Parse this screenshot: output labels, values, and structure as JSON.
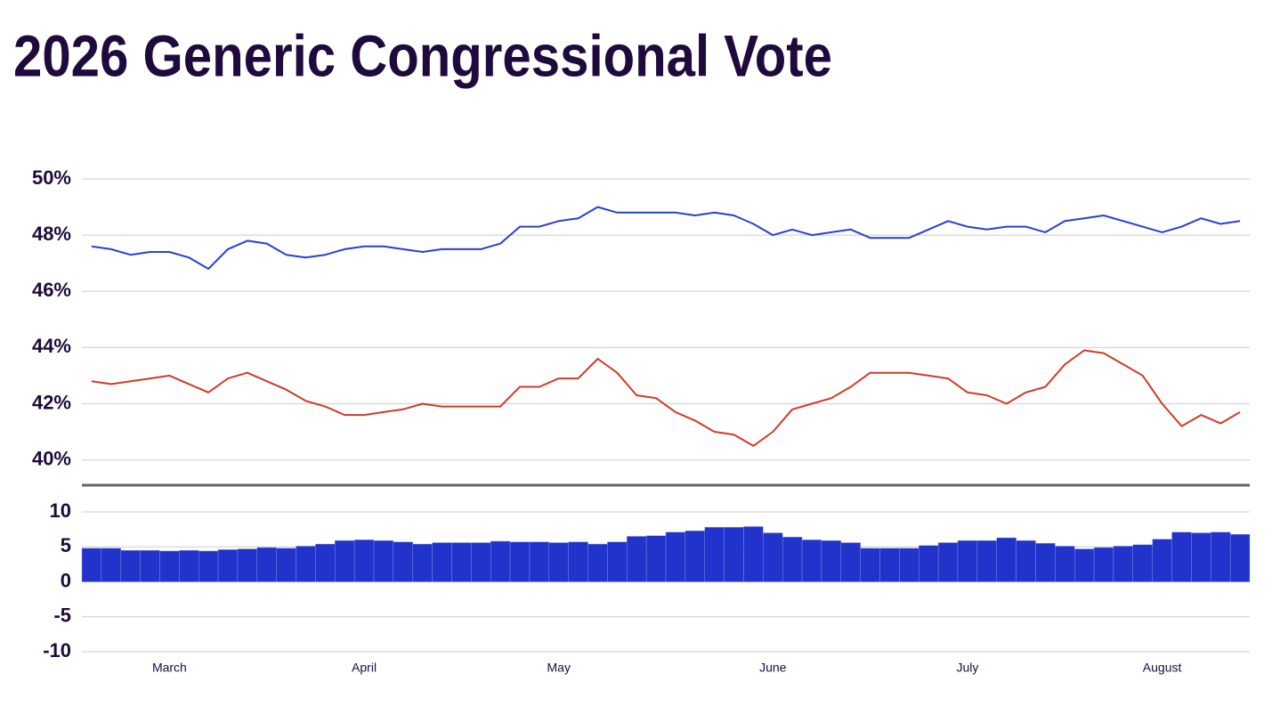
{
  "chart_data": [
    {
      "type": "line",
      "title": "2026 Generic Congressional Vote",
      "ylim": [
        39.1,
        50.3
      ],
      "yticks": [
        {
          "value": 40,
          "label": "40%"
        },
        {
          "value": 42,
          "label": "42%"
        },
        {
          "value": 44,
          "label": "44%"
        },
        {
          "value": 46,
          "label": "46%"
        },
        {
          "value": 48,
          "label": "48%"
        },
        {
          "value": 50,
          "label": "50%"
        }
      ],
      "grid": true,
      "series": [
        {
          "color": "#2a3fd0",
          "values": [
            47.6,
            47.5,
            47.3,
            47.4,
            47.4,
            47.2,
            46.8,
            47.5,
            47.8,
            47.7,
            47.3,
            47.2,
            47.3,
            47.5,
            47.6,
            47.6,
            47.5,
            47.4,
            47.5,
            47.5,
            47.5,
            47.7,
            48.3,
            48.3,
            48.5,
            48.6,
            49.0,
            48.8,
            48.8,
            48.8,
            48.8,
            48.7,
            48.8,
            48.7,
            48.4,
            48.0,
            48.2,
            48.0,
            48.1,
            48.2,
            47.9,
            47.9,
            47.9,
            48.2,
            48.5,
            48.3,
            48.2,
            48.3,
            48.3,
            48.1,
            48.5,
            48.6,
            48.7,
            48.5,
            48.3,
            48.1,
            48.3,
            48.6,
            48.4,
            48.5
          ]
        },
        {
          "color": "#d13a2a",
          "values": [
            42.8,
            42.7,
            42.8,
            42.9,
            43.0,
            42.7,
            42.4,
            42.9,
            43.1,
            42.8,
            42.5,
            42.1,
            41.9,
            41.6,
            41.6,
            41.7,
            41.8,
            42.0,
            41.9,
            41.9,
            41.9,
            41.9,
            42.6,
            42.6,
            42.9,
            42.9,
            43.6,
            43.1,
            42.3,
            42.2,
            41.7,
            41.4,
            41.0,
            40.9,
            40.5,
            41.0,
            41.8,
            42.0,
            42.2,
            42.6,
            43.1,
            43.1,
            43.1,
            43.0,
            42.9,
            42.4,
            42.3,
            42.0,
            42.4,
            42.6,
            43.4,
            43.9,
            43.8,
            43.4,
            43.0,
            42.0,
            41.2,
            41.6,
            41.3,
            41.7
          ]
        }
      ]
    },
    {
      "type": "bar",
      "ylim": [
        -10,
        10
      ],
      "yticks": [
        -10,
        -5,
        0,
        5,
        10
      ],
      "grid": true,
      "color": "#2233cc",
      "categories": [
        null,
        null,
        null,
        null,
        "March",
        null,
        null,
        null,
        null,
        null,
        null,
        null,
        null,
        null,
        "April",
        null,
        null,
        null,
        null,
        null,
        null,
        null,
        null,
        null,
        "May",
        null,
        null,
        null,
        null,
        null,
        null,
        null,
        null,
        null,
        null,
        "June",
        null,
        null,
        null,
        null,
        null,
        null,
        null,
        null,
        null,
        "July",
        null,
        null,
        null,
        null,
        null,
        null,
        null,
        null,
        null,
        "August",
        null,
        null,
        null,
        null
      ],
      "values": [
        4.8,
        4.8,
        4.5,
        4.5,
        4.4,
        4.5,
        4.4,
        4.6,
        4.7,
        4.9,
        4.8,
        5.1,
        5.4,
        5.9,
        6.0,
        5.9,
        5.7,
        5.4,
        5.6,
        5.6,
        5.6,
        5.8,
        5.7,
        5.7,
        5.6,
        5.7,
        5.4,
        5.7,
        6.5,
        6.6,
        7.1,
        7.3,
        7.8,
        7.8,
        7.9,
        7.0,
        6.4,
        6.0,
        5.9,
        5.6,
        4.8,
        4.8,
        4.8,
        5.2,
        5.6,
        5.9,
        5.9,
        6.3,
        5.9,
        5.5,
        5.1,
        4.7,
        4.9,
        5.1,
        5.3,
        6.1,
        7.1,
        7.0,
        7.1,
        6.8
      ]
    }
  ]
}
